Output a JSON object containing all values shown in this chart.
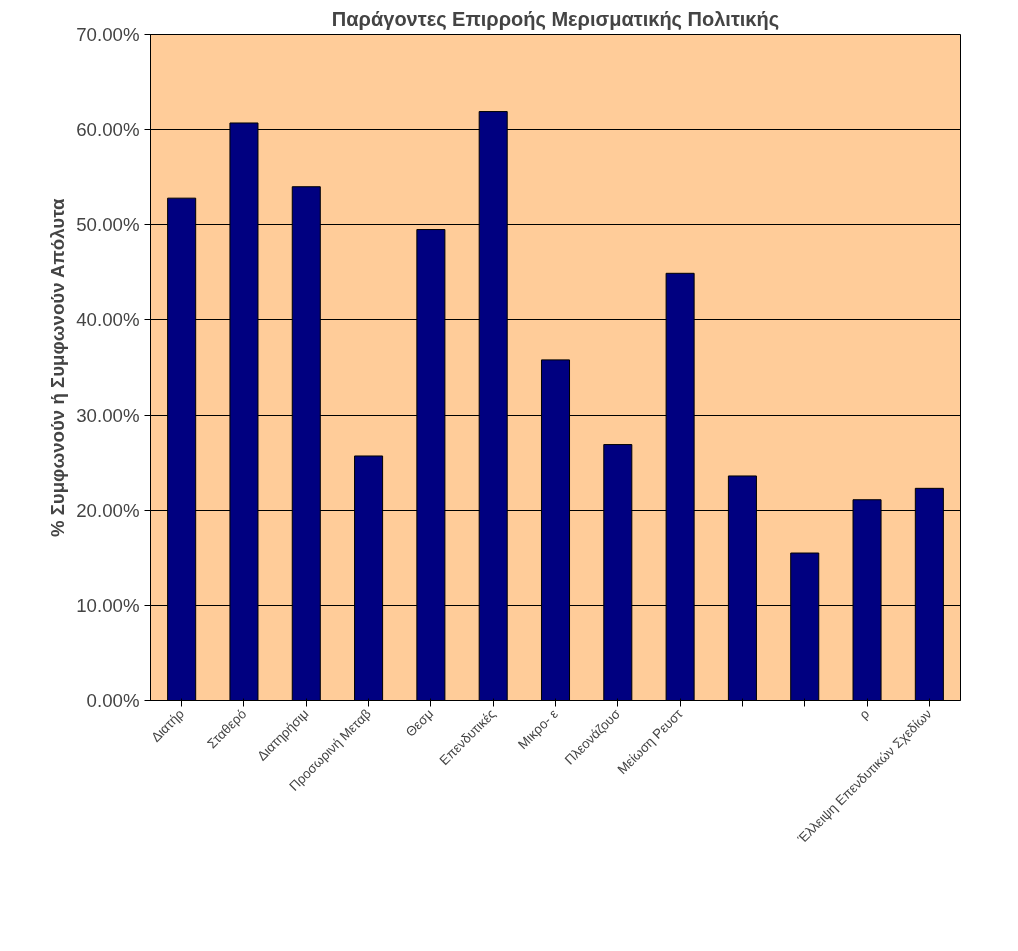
{
  "chart_data": {
    "type": "bar",
    "title": "Παράγοντες Επιρροής Μερισματικής Πολιτικής",
    "ylabel": "% Συμφωνούν ή Συμφωνούν Απόλυτα",
    "categories": [
      "Διατήρ",
      "Σταθερό",
      "Διατηρήσιμ",
      "Προσωρινή Μεταβ",
      "Θεσμ",
      "Επενδυτικές",
      "Μικρο- ε",
      "Πλεονάζουσ",
      "Μείωση Ρευστ",
      null,
      null,
      "ρ",
      "Έλλειψη Επενδυτικών Σχεδίων"
    ],
    "values": [
      52.8,
      60.7,
      54.0,
      25.7,
      49.5,
      61.9,
      35.8,
      26.9,
      44.9,
      23.6,
      15.5,
      21.1,
      22.3
    ],
    "color": "#000080",
    "ylim": [
      0,
      70
    ],
    "yticks": [
      {
        "value": 0,
        "label": "0.00%"
      },
      {
        "value": 10,
        "label": "10.00%"
      },
      {
        "value": 20,
        "label": "20.00%"
      },
      {
        "value": 30,
        "label": "30.00%"
      },
      {
        "value": 40,
        "label": "40.00%"
      },
      {
        "value": 50,
        "label": "50.00%"
      },
      {
        "value": 60,
        "label": "60.00%"
      },
      {
        "value": 70,
        "label": "70.00%"
      }
    ],
    "grid": "y"
  }
}
